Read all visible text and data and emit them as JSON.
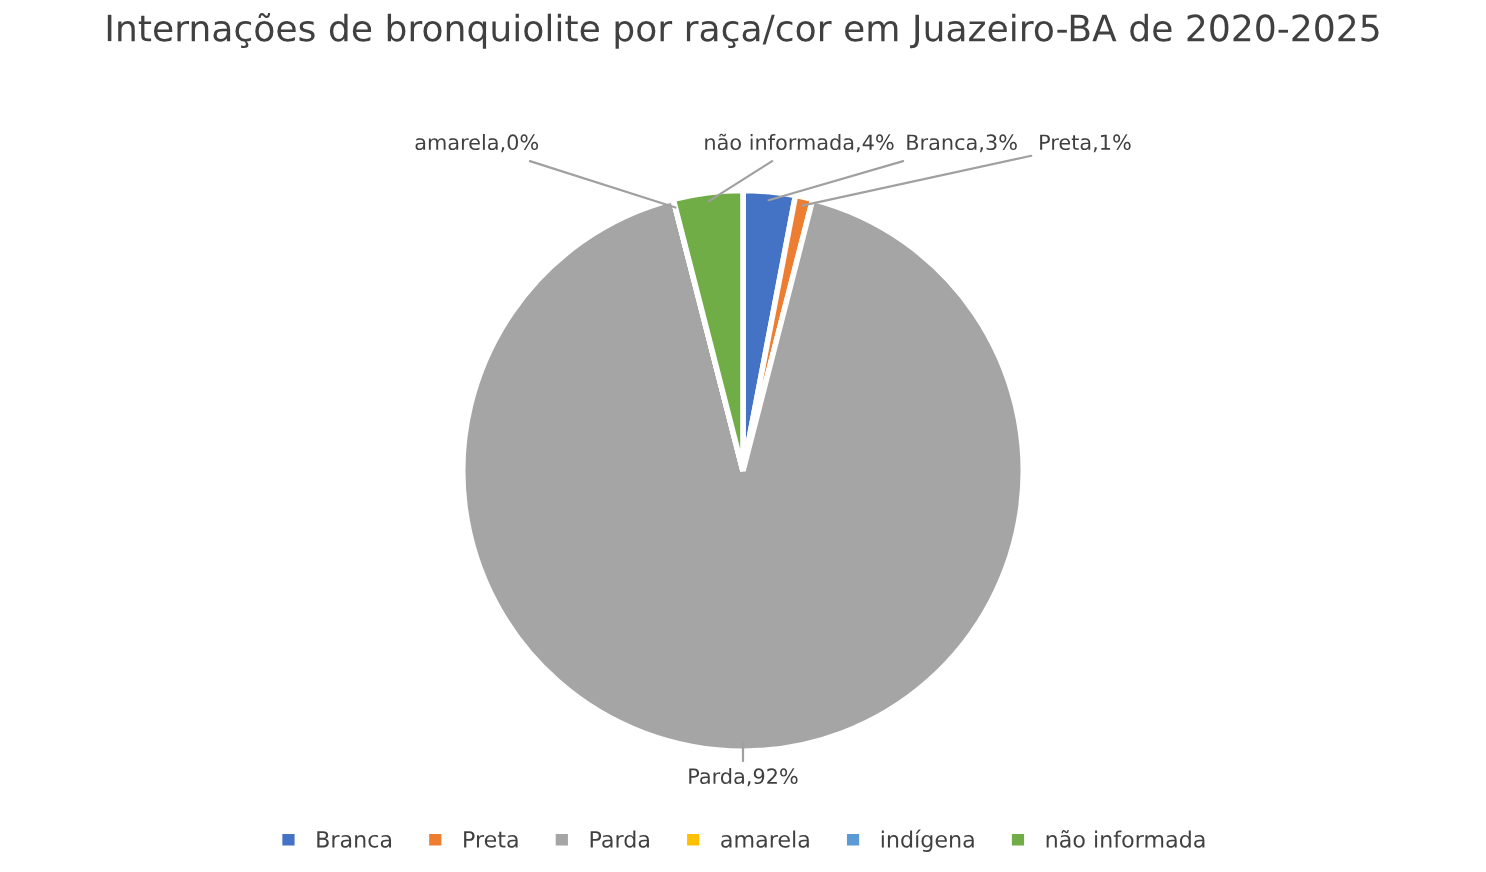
{
  "chart_data": {
    "type": "pie",
    "title": "Internações de bronquiolite por raça/cor em Juazeiro-BA de 2020-2025",
    "categories": [
      "Branca",
      "Preta",
      "Parda",
      "amarela",
      "indígena",
      "não informada"
    ],
    "values": [
      3,
      1,
      92,
      0,
      0,
      4
    ],
    "colors": [
      "#4472c4",
      "#ed7d31",
      "#a5a5a5",
      "#ffc000",
      "#5b9bd5",
      "#70ad47"
    ],
    "value_labels": [
      "Branca,3%",
      "Preta,1%",
      "Parda,92%",
      "amarela,0%",
      null,
      "não informada,4%"
    ],
    "legend": "bottom"
  }
}
